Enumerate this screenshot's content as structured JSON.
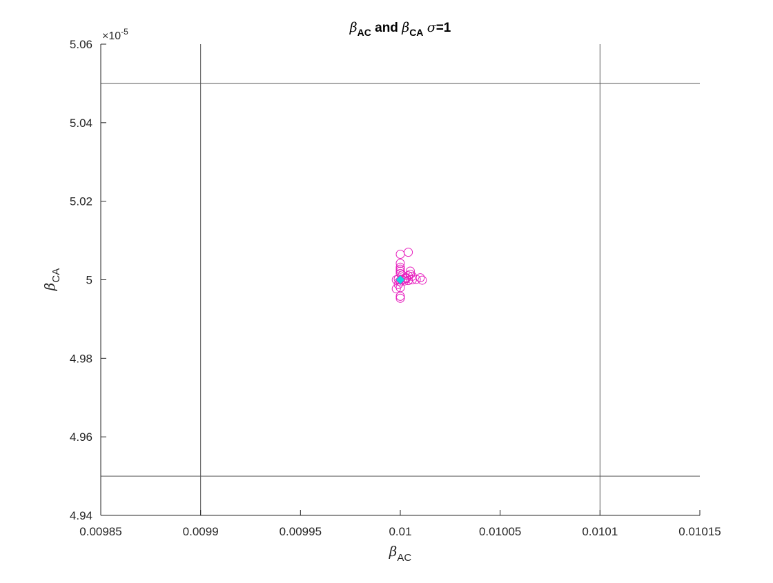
{
  "chart_data": {
    "type": "scatter",
    "title": {
      "greek_symbol": "β",
      "subscript_1": "AC",
      "connector": " and ",
      "subscript_2": "CA",
      "sigma_symbol": "σ",
      "suffix": "=1"
    },
    "xlabel": {
      "greek_symbol": "β",
      "subscript": "AC"
    },
    "ylabel": {
      "greek_symbol": "β",
      "subscript": "CA"
    },
    "xlim": [
      0.00985,
      0.01015
    ],
    "ylim": [
      4.94e-05,
      5.06e-05
    ],
    "x_ticks": [
      0.00985,
      0.0099,
      0.00995,
      0.01,
      0.01005,
      0.0101,
      0.01015
    ],
    "x_tick_labels": [
      "0.00985",
      "0.0099",
      "0.00995",
      "0.01",
      "0.01005",
      "0.0101",
      "0.01015"
    ],
    "y_ticks": [
      4.94e-05,
      4.96e-05,
      4.98e-05,
      5e-05,
      5.02e-05,
      5.04e-05,
      5.06e-05
    ],
    "y_tick_labels": [
      "4.94",
      "4.96",
      "4.98",
      "5",
      "5.02",
      "5.04",
      "5.06"
    ],
    "y_exponent_label": {
      "prefix": "×10",
      "exponent": "-5"
    },
    "grid": false,
    "reference_lines": {
      "vertical": [
        0.0099,
        0.0101
      ],
      "horizontal": [
        4.95e-05,
        5.05e-05
      ],
      "color": "#555555"
    },
    "series": [
      {
        "marker": "circle-open",
        "color": "#e61fbe",
        "points": [
          [
            0.01,
            5.0065e-05
          ],
          [
            0.010004,
            5.007e-05
          ],
          [
            0.01,
            5.0042e-05
          ],
          [
            0.01,
            5.0032e-05
          ],
          [
            0.01,
            5.0027e-05
          ],
          [
            0.01,
            5.0022e-05
          ],
          [
            0.01,
            5.0016e-05
          ],
          [
            0.010001,
            5.0012e-05
          ],
          [
            0.010005,
            5.0022e-05
          ],
          [
            0.010005,
            5.0014e-05
          ],
          [
            0.010006,
            5.0009e-05
          ],
          [
            0.010004,
            5.001e-05
          ],
          [
            0.010003,
            5.0005e-05
          ],
          [
            0.010002,
            5.0002e-05
          ],
          [
            0.010006,
            5e-05
          ],
          [
            0.010008,
            5.0001e-05
          ],
          [
            0.01001,
            5.0005e-05
          ],
          [
            0.010011,
            4.9999e-05
          ],
          [
            0.010004,
            4.9998e-05
          ],
          [
            0.010001,
            5e-05
          ],
          [
            0.009999,
            5.0002e-05
          ],
          [
            0.009998,
            5e-05
          ],
          [
            0.01,
            4.9995e-05
          ],
          [
            0.009999,
            4.9988e-05
          ],
          [
            0.009998,
            4.9977e-05
          ],
          [
            0.01,
            4.998e-05
          ],
          [
            0.01,
            4.9958e-05
          ],
          [
            0.01,
            4.9953e-05
          ],
          [
            0.010002,
            4.9997e-05
          ],
          [
            0.010003,
            5.0003e-05
          ]
        ]
      },
      {
        "marker": "diamond-filled",
        "color": "#17d4e4",
        "edge_color": "#e61fbe",
        "points": [
          [
            0.01,
            5e-05
          ]
        ]
      }
    ],
    "colors": {
      "axes": "#262626",
      "background": "#ffffff"
    }
  }
}
